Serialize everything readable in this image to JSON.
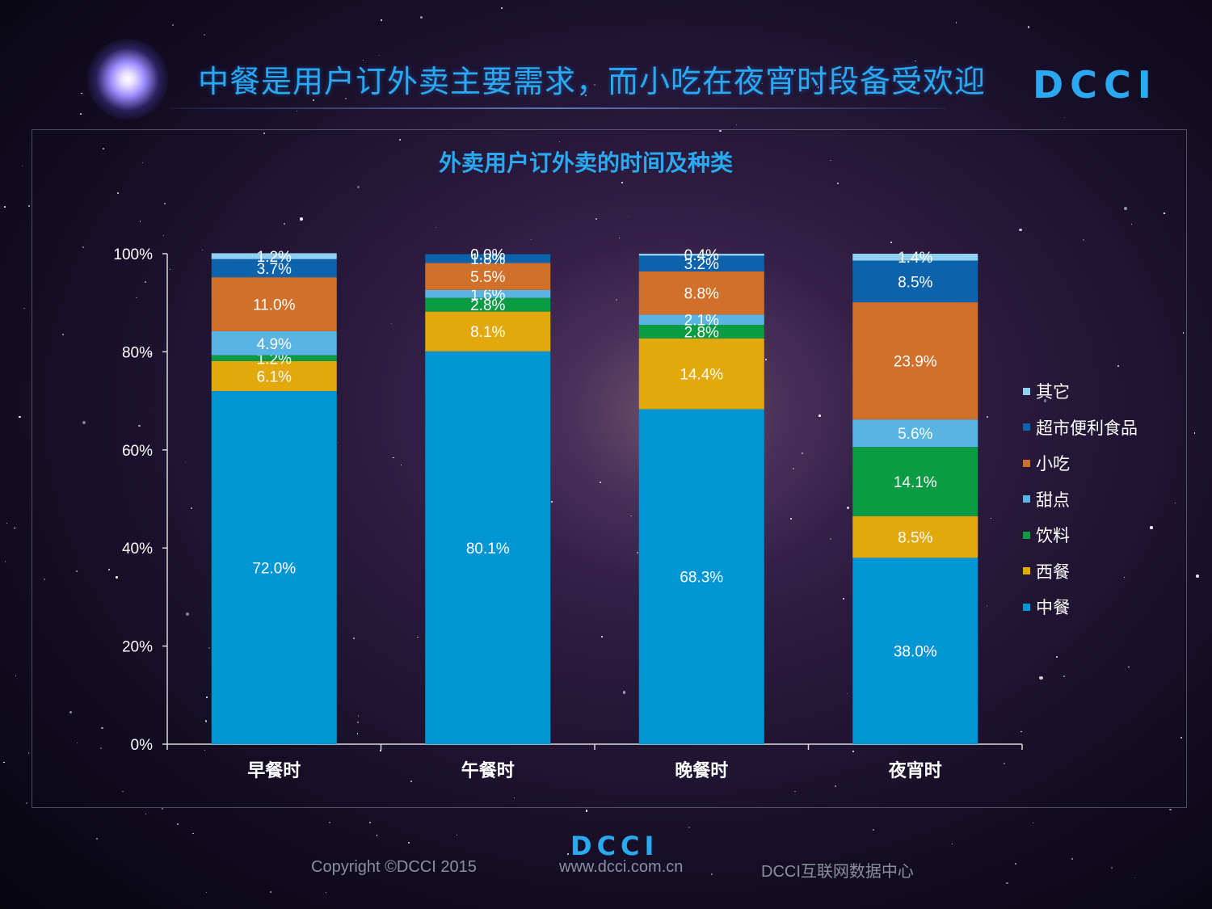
{
  "header": {
    "title": "中餐是用户订外卖主要需求，而小吃在夜宵时段备受欢迎",
    "logo": "DCCI"
  },
  "colors": {
    "accent": "#2aa9f0"
  },
  "chart_data": {
    "type": "bar",
    "stacked": true,
    "title": "外卖用户订外卖的时间及种类",
    "xlabel": "",
    "ylabel": "",
    "ylim": [
      0,
      100
    ],
    "yticks": [
      "0%",
      "20%",
      "40%",
      "60%",
      "80%",
      "100%"
    ],
    "categories": [
      "早餐时",
      "午餐时",
      "晚餐时",
      "夜宵时"
    ],
    "series": [
      {
        "name": "中餐",
        "color": "#0096d6",
        "values": [
          72.0,
          80.1,
          68.3,
          38.0
        ],
        "labels": [
          "72.0%",
          "80.1%",
          "68.3%",
          "38.0%"
        ]
      },
      {
        "name": "西餐",
        "color": "#e2a80c",
        "values": [
          6.1,
          8.1,
          14.4,
          8.5
        ],
        "labels": [
          "6.1%",
          "8.1%",
          "14.4%",
          "8.5%"
        ]
      },
      {
        "name": "饮料",
        "color": "#0a9b43",
        "values": [
          1.2,
          2.8,
          2.8,
          14.1
        ],
        "labels": [
          "1.2%",
          "2.8%",
          "2.8%",
          "14.1%"
        ]
      },
      {
        "name": "甜点",
        "color": "#5ab4e3",
        "values": [
          4.9,
          1.6,
          2.1,
          5.6
        ],
        "labels": [
          "4.9%",
          "1.6%",
          "2.1%",
          "5.6%"
        ]
      },
      {
        "name": "小吃",
        "color": "#d1702a",
        "values": [
          11.0,
          5.5,
          8.8,
          23.9
        ],
        "labels": [
          "11.0%",
          "5.5%",
          "8.8%",
          "23.9%"
        ]
      },
      {
        "name": "超市便利食品",
        "color": "#0c62ab",
        "values": [
          3.7,
          1.8,
          3.2,
          8.5
        ],
        "labels": [
          "3.7%",
          "1.8%",
          "3.2%",
          "8.5%"
        ]
      },
      {
        "name": "其它",
        "color": "#8fd0f2",
        "values": [
          1.2,
          0.0,
          0.4,
          1.4
        ],
        "labels": [
          "1.2%",
          "0.0%",
          "0.4%",
          "1.4%"
        ]
      }
    ],
    "legend": [
      "其它",
      "超市便利食品",
      "小吃",
      "甜点",
      "饮料",
      "西餐",
      "中餐"
    ],
    "legend_position": "right"
  },
  "footer": {
    "logo": "DCCI",
    "copyright": "Copyright ©DCCI 2015",
    "website": "www.dcci.com.cn",
    "org": "DCCI互联网数据中心"
  }
}
